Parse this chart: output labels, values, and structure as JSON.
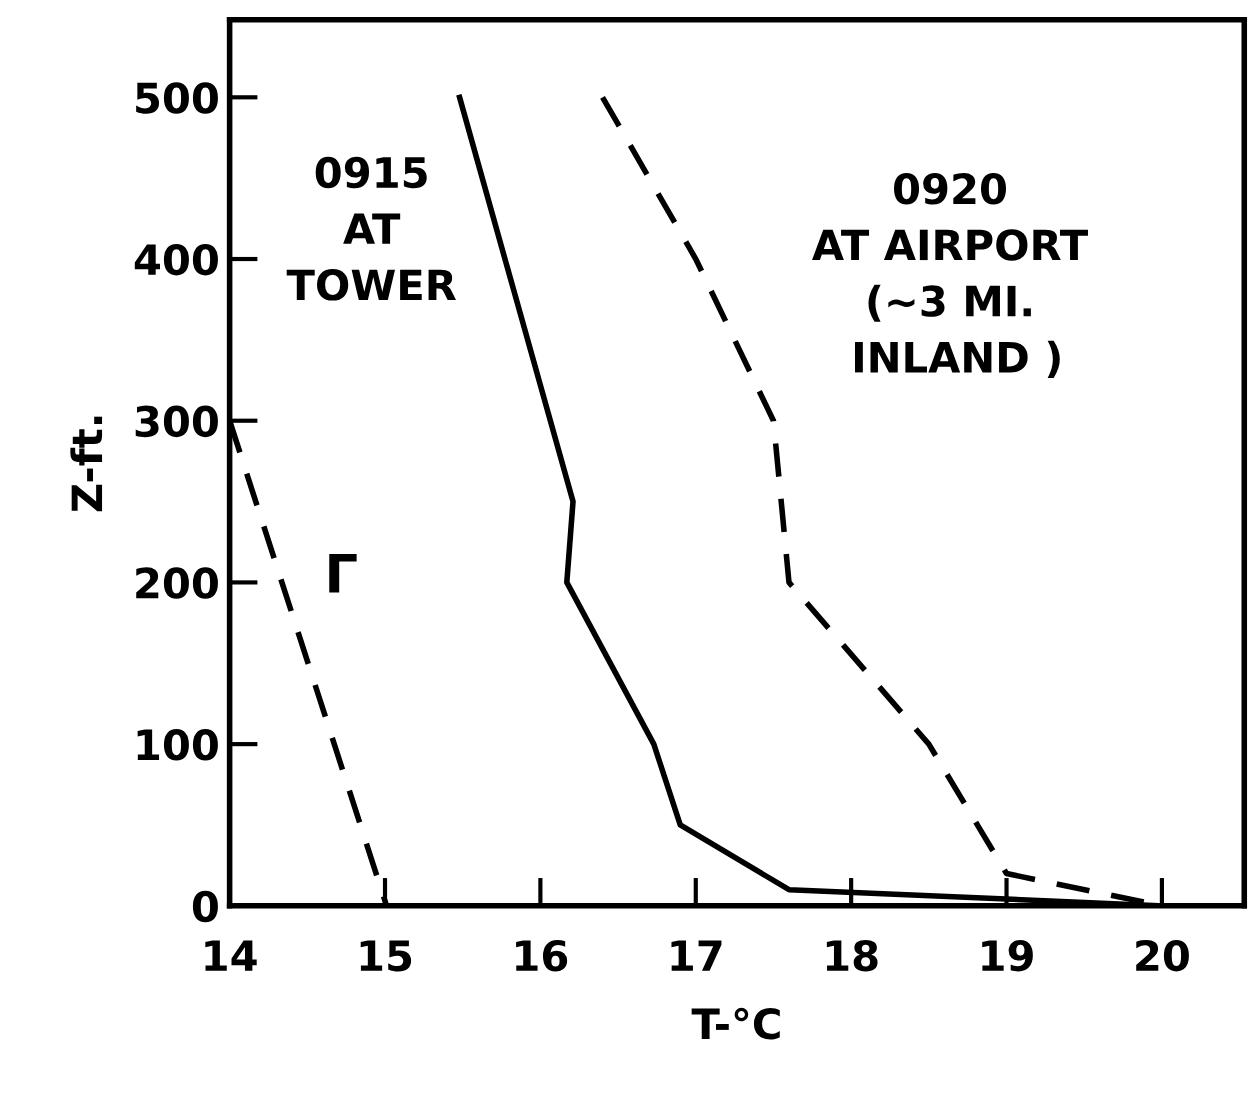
{
  "chart_data": {
    "type": "line",
    "xlabel": "T-°C",
    "ylabel": "Z-ft.",
    "xlim": [
      14,
      20.53
    ],
    "ylim": [
      0,
      548
    ],
    "xticks": [
      14,
      15,
      16,
      17,
      18,
      19,
      20
    ],
    "yticks": [
      0,
      100,
      200,
      300,
      400,
      500
    ],
    "grid": false,
    "legend": false,
    "marker": "none",
    "series": [
      {
        "name": "0915\nAT\nTOWER",
        "color": "#000000",
        "line_style": "solid",
        "x": [
          15.48,
          16.21,
          16.17,
          16.73,
          16.9,
          17.6,
          20.0
        ],
        "values": [
          500,
          250,
          200,
          100,
          50,
          10,
          0
        ]
      },
      {
        "name": "0920\nAT AIRPORT\n(∼3 MI.\n INLAND )",
        "color": "#000000",
        "line_style": "dashed",
        "x": [
          16.4,
          17.0,
          17.5,
          17.6,
          18.5,
          19.0,
          20.0
        ],
        "values": [
          500,
          400,
          300,
          200,
          100,
          20,
          0
        ]
      },
      {
        "name": "Γ",
        "color": "#000000",
        "line_style": "dashed",
        "x": [
          14.0,
          15.01
        ],
        "values": [
          300,
          0
        ]
      }
    ]
  }
}
